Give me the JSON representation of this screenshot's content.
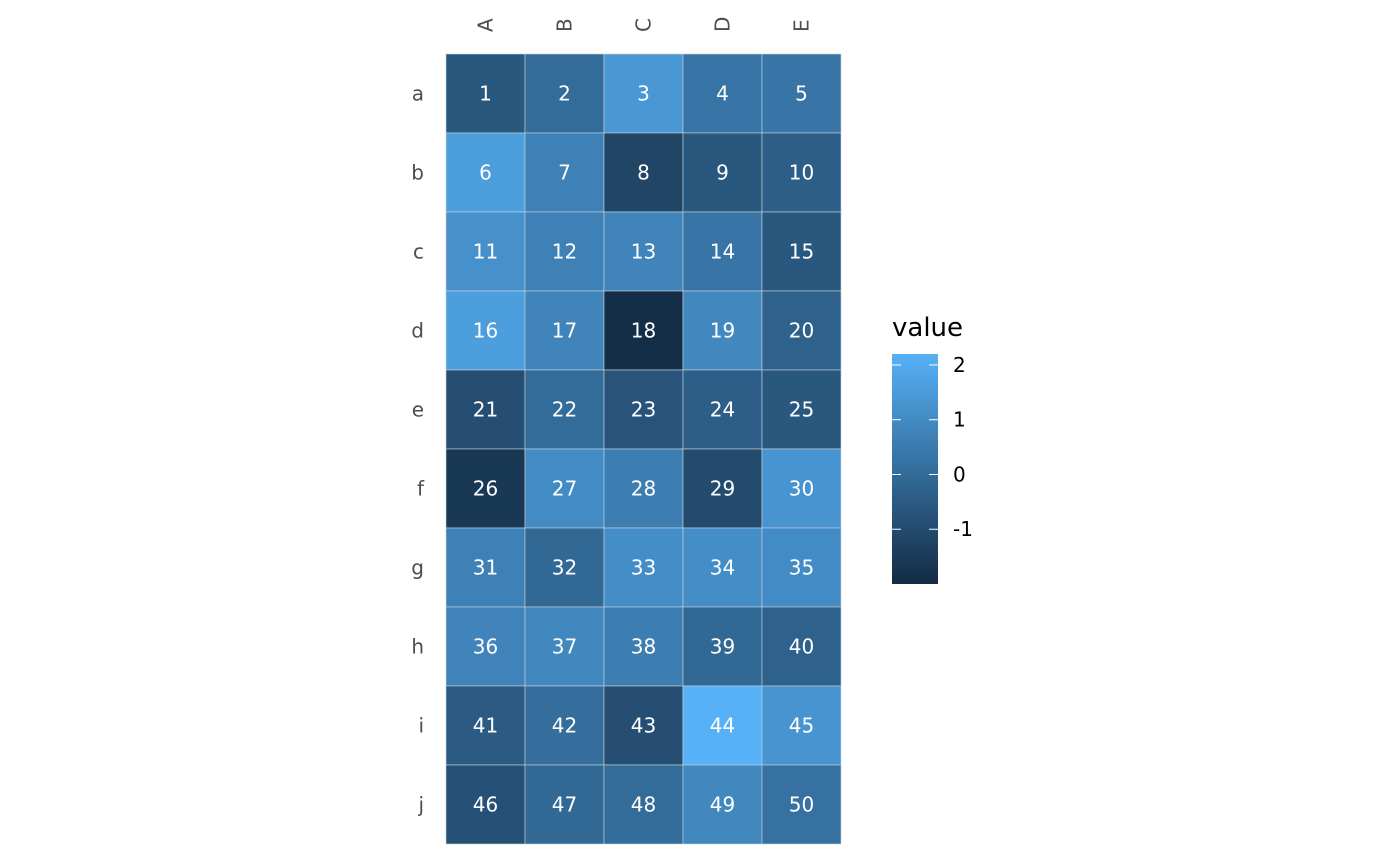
{
  "chart_data": {
    "type": "heatmap",
    "columns": [
      "A",
      "B",
      "C",
      "D",
      "E"
    ],
    "rows": [
      "a",
      "b",
      "c",
      "d",
      "e",
      "f",
      "g",
      "h",
      "i",
      "j"
    ],
    "values": [
      [
        -0.6,
        0.0,
        1.4,
        0.3,
        0.3
      ],
      [
        1.6,
        0.7,
        -1.2,
        -0.6,
        -0.4
      ],
      [
        1.2,
        0.7,
        0.8,
        0.3,
        -0.6
      ],
      [
        1.6,
        0.8,
        -1.9,
        0.9,
        -0.3
      ],
      [
        -0.9,
        0.0,
        -0.7,
        -0.4,
        -0.6
      ],
      [
        -1.6,
        1.0,
        0.6,
        -1.0,
        1.3
      ],
      [
        0.7,
        -0.1,
        1.1,
        1.1,
        1.0
      ],
      [
        0.8,
        0.9,
        0.6,
        -0.1,
        -0.3
      ],
      [
        -0.5,
        0.1,
        -0.9,
        2.2,
        1.3
      ],
      [
        -0.8,
        -0.1,
        0.0,
        0.9,
        0.2
      ]
    ],
    "cell_labels": [
      [
        "1",
        "2",
        "3",
        "4",
        "5"
      ],
      [
        "6",
        "7",
        "8",
        "9",
        "10"
      ],
      [
        "11",
        "12",
        "13",
        "14",
        "15"
      ],
      [
        "16",
        "17",
        "18",
        "19",
        "20"
      ],
      [
        "21",
        "22",
        "23",
        "24",
        "25"
      ],
      [
        "26",
        "27",
        "28",
        "29",
        "30"
      ],
      [
        "31",
        "32",
        "33",
        "34",
        "35"
      ],
      [
        "36",
        "37",
        "38",
        "39",
        "40"
      ],
      [
        "41",
        "42",
        "43",
        "44",
        "45"
      ],
      [
        "46",
        "47",
        "48",
        "49",
        "50"
      ]
    ],
    "legend": {
      "title": "value",
      "ticks": [
        2,
        1,
        0,
        -1
      ],
      "tick_labels": [
        "2",
        "1",
        "0",
        "-1"
      ],
      "range": [
        -2.0,
        2.2
      ]
    },
    "colors": {
      "low": "#132B43",
      "high": "#56B1F7",
      "grid_line": "#c8d2dc"
    },
    "legend_placement": "right",
    "grid": false
  }
}
